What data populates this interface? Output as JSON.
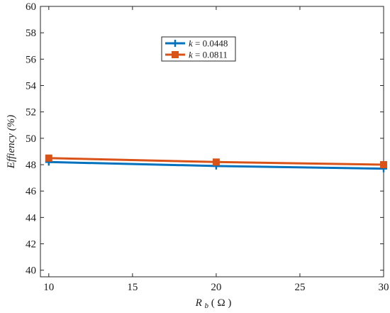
{
  "chart_data": {
    "type": "line",
    "x": [
      10,
      20,
      30
    ],
    "xlim": [
      9.5,
      30
    ],
    "ylim": [
      39.5,
      60
    ],
    "xticks": [
      10,
      15,
      20,
      25,
      30
    ],
    "yticks": [
      40,
      42,
      44,
      46,
      48,
      50,
      52,
      54,
      56,
      58,
      60
    ],
    "xlabel_main": "R",
    "xlabel_sub": "b",
    "xlabel_unit": "( Ω )",
    "ylabel": "Effiency (%)",
    "grid": false,
    "legend_placement": "top-center",
    "series": [
      {
        "name_var": "k",
        "name_value": " = 0.0448",
        "values": [
          48.2,
          47.9,
          47.7
        ],
        "color": "#0072BD",
        "marker": "plus"
      },
      {
        "name_var": "k",
        "name_value": " = 0.0811",
        "values": [
          48.5,
          48.2,
          48.0
        ],
        "color": "#D95319",
        "marker": "square"
      }
    ]
  }
}
